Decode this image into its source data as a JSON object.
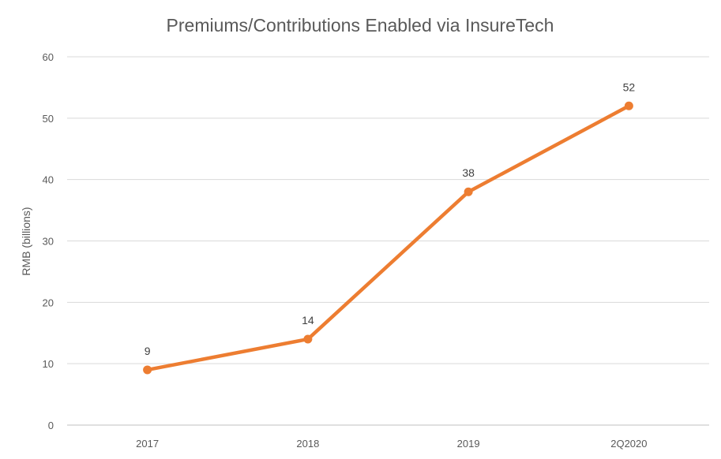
{
  "chart_data": {
    "type": "line",
    "title": "Premiums/Contributions Enabled via InsureTech",
    "xlabel": "",
    "ylabel": "RMB (billions)",
    "categories": [
      "2017",
      "2018",
      "2019",
      "2Q2020"
    ],
    "series": [
      {
        "values": [
          9,
          14,
          38,
          52
        ],
        "data_labels": [
          "9",
          "14",
          "38",
          "52"
        ]
      }
    ],
    "ylim": [
      0,
      60
    ],
    "yticks": [
      0,
      10,
      20,
      30,
      40,
      50,
      60
    ],
    "ytick_labels": [
      "0",
      "10",
      "20",
      "30",
      "40",
      "50",
      "60"
    ],
    "grid": "horizontal",
    "legend": "none",
    "colors": {
      "series": "#ED7D31",
      "grid": "#D9D9D9",
      "text": "#595959",
      "data_label": "#404040"
    }
  }
}
